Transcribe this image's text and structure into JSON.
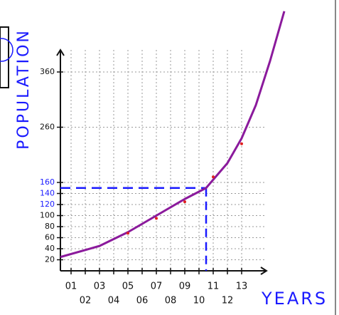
{
  "chart_data": {
    "type": "line",
    "y_label": "POPULATION",
    "x_label": "YEARS",
    "xlim": [
      0.25,
      14.75
    ],
    "ylim": [
      0,
      400
    ],
    "xticks": [
      {
        "value": 1,
        "label": "01"
      },
      {
        "value": 2,
        "label": "02"
      },
      {
        "value": 3,
        "label": "03"
      },
      {
        "value": 4,
        "label": "04"
      },
      {
        "value": 5,
        "label": "05"
      },
      {
        "value": 6,
        "label": "06"
      },
      {
        "value": 7,
        "label": "07"
      },
      {
        "value": 8,
        "label": "08"
      },
      {
        "value": 9,
        "label": "09"
      },
      {
        "value": 10,
        "label": "10"
      },
      {
        "value": 11,
        "label": "11"
      },
      {
        "value": 12,
        "label": "12"
      },
      {
        "value": 13,
        "label": "13"
      }
    ],
    "yticks": [
      20,
      40,
      60,
      80,
      100,
      120,
      140,
      160,
      260,
      360
    ],
    "ytick_colors": [
      "#111",
      "#111",
      "#111",
      "#111",
      "#111",
      "#1a1aff",
      "#1a1aff",
      "#1a1aff",
      "#111",
      "#111"
    ],
    "grid": true,
    "label_color": "#1a1aff",
    "series": [
      {
        "color": "#8b1a9c",
        "x": [
          0.25,
          3,
          5,
          7,
          9,
          10.5,
          11,
          12,
          13,
          14,
          15,
          16
        ],
        "values": [
          25,
          45,
          70,
          100,
          130,
          150,
          165,
          195,
          240,
          300,
          380,
          470
        ]
      },
      {
        "color": "#e02020",
        "x": [
          5,
          7,
          9,
          11,
          13
        ],
        "values": [
          68,
          95,
          125,
          170,
          230
        ]
      }
    ],
    "guide": {
      "x": 10.5,
      "y": 150,
      "color": "#1a1aff"
    }
  }
}
